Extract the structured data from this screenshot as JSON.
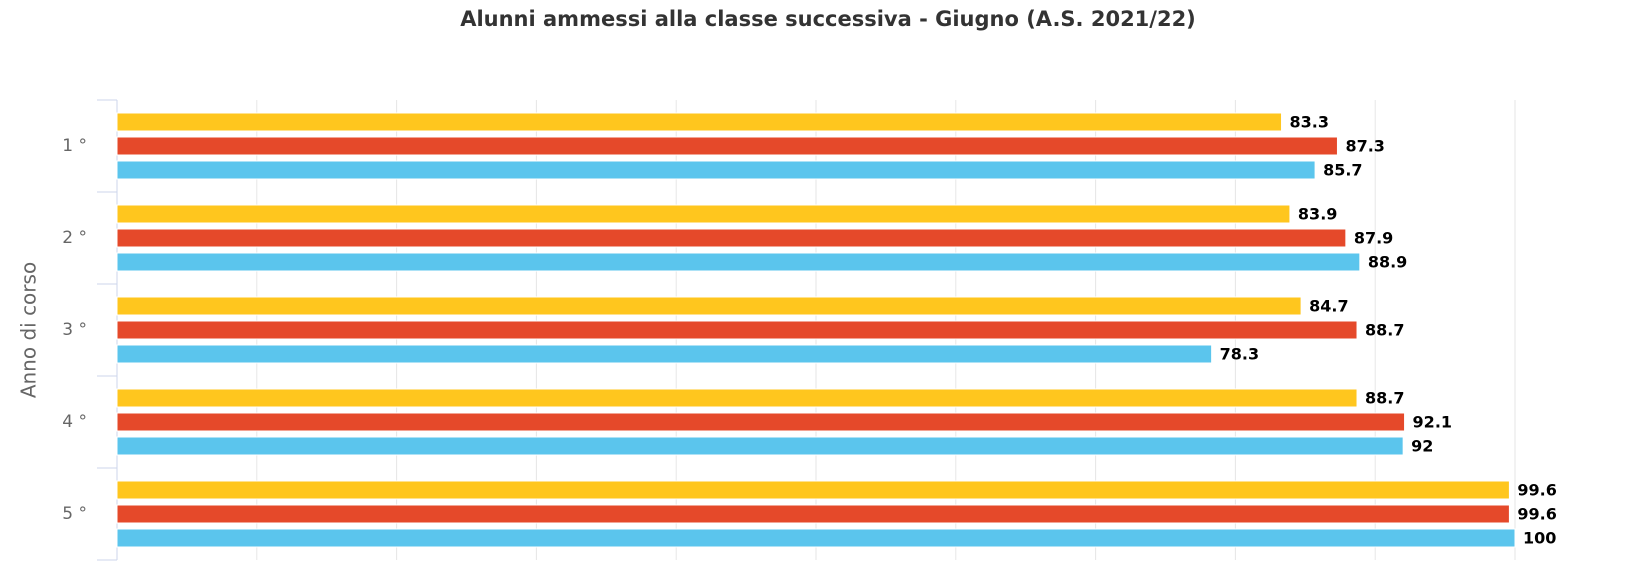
{
  "chart_data": {
    "type": "barh",
    "title": "Alunni ammessi alla classe successiva - Giugno (A.S. 2021/22)",
    "y_label": "Anno di corso",
    "categories": [
      "1 °",
      "2 °",
      "3 °",
      "4 °",
      "5 °"
    ],
    "series": [
      {
        "color": "#ffc61e",
        "values": [
          83.3,
          83.9,
          84.7,
          88.7,
          99.6
        ]
      },
      {
        "color": "#e5492a",
        "values": [
          87.3,
          87.9,
          88.7,
          92.1,
          99.6
        ]
      },
      {
        "color": "#5bc5ed",
        "values": [
          85.7,
          88.9,
          78.3,
          92,
          100
        ]
      }
    ],
    "xlim": [
      0,
      100
    ],
    "xticks": [
      0,
      10,
      20,
      30,
      40,
      50,
      60,
      70,
      80,
      90,
      100
    ],
    "grid": true
  }
}
